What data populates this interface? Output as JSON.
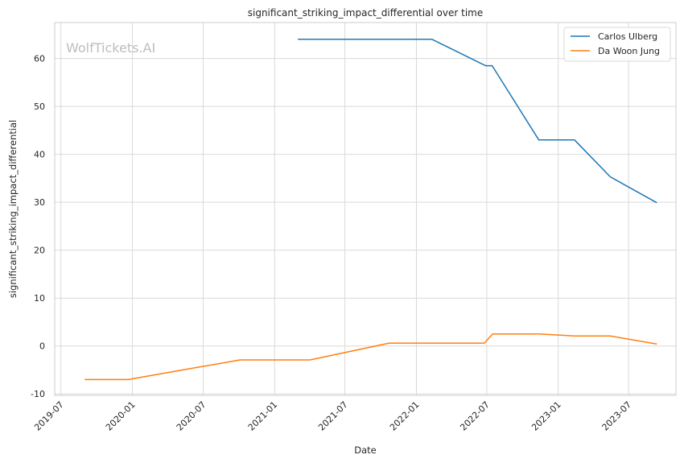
{
  "chart_data": {
    "type": "line",
    "title": "significant_striking_impact_differential over time",
    "xlabel": "Date",
    "ylabel": "significant_striking_impact_differential",
    "watermark": "WolfTickets.AI",
    "x_ticks": [
      "2019-07",
      "2020-01",
      "2020-07",
      "2021-01",
      "2021-07",
      "2022-01",
      "2022-07",
      "2023-01",
      "2023-07"
    ],
    "y_ticks": [
      -10,
      0,
      10,
      20,
      30,
      40,
      50,
      60
    ],
    "xlim": [
      "2019-06-15",
      "2023-10-31"
    ],
    "ylim": [
      -10.3,
      67.5
    ],
    "grid": true,
    "legend_position": "top-right",
    "series": [
      {
        "name": "Carlos Ulberg",
        "color": "#1f77b4",
        "points": [
          {
            "x": "2021-03-02",
            "y": 64.0
          },
          {
            "x": "2022-02-10",
            "y": 64.0
          },
          {
            "x": "2022-06-28",
            "y": 58.5
          },
          {
            "x": "2022-07-15",
            "y": 58.5
          },
          {
            "x": "2022-11-12",
            "y": 43.0
          },
          {
            "x": "2023-02-12",
            "y": 43.0
          },
          {
            "x": "2023-05-15",
            "y": 35.3
          },
          {
            "x": "2023-09-12",
            "y": 29.9
          }
        ]
      },
      {
        "name": "Da Woon Jung",
        "color": "#ff7f0e",
        "points": [
          {
            "x": "2019-08-31",
            "y": -7.0
          },
          {
            "x": "2019-12-21",
            "y": -7.0
          },
          {
            "x": "2020-06-20",
            "y": -4.4
          },
          {
            "x": "2020-10-04",
            "y": -2.9
          },
          {
            "x": "2021-04-02",
            "y": -2.9
          },
          {
            "x": "2021-10-23",
            "y": 0.6
          },
          {
            "x": "2022-06-25",
            "y": 0.6
          },
          {
            "x": "2022-07-16",
            "y": 2.5
          },
          {
            "x": "2022-11-12",
            "y": 2.5
          },
          {
            "x": "2023-02-12",
            "y": 2.1
          },
          {
            "x": "2023-05-15",
            "y": 2.1
          },
          {
            "x": "2023-09-12",
            "y": 0.4
          }
        ]
      }
    ]
  }
}
